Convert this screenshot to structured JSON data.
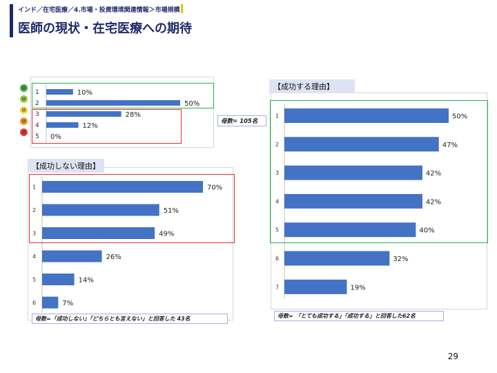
{
  "header": {
    "breadcrumb": "インド／在宅医療／4.市場・投資環境関連情報＞市場規模",
    "title": "医師の現状・在宅医療への期待"
  },
  "sentiment_chart": {
    "note": "母数= 105名",
    "faces": [
      {
        "icon": "very-happy-face-icon",
        "color": "#3fae49"
      },
      {
        "icon": "happy-face-icon",
        "color": "#9ccc3c"
      },
      {
        "icon": "neutral-face-icon",
        "color": "#f5d33a"
      },
      {
        "icon": "unhappy-face-icon",
        "color": "#f39a2b"
      },
      {
        "icon": "angry-face-icon",
        "color": "#e53935"
      }
    ],
    "chart_data": {
      "type": "bar",
      "categories": [
        "1",
        "2",
        "3",
        "4",
        "5"
      ],
      "values": [
        10,
        50,
        28,
        12,
        0
      ],
      "labels": [
        "10%",
        "50%",
        "28%",
        "12%",
        "0%"
      ],
      "xlim": [
        0,
        60
      ]
    }
  },
  "fail_chart": {
    "tag": "【成功しない理由】",
    "note": "母数=「成功しない」「どちらとも言えない」と回答した 43名",
    "chart_data": {
      "type": "bar",
      "categories": [
        "1",
        "2",
        "3",
        "4",
        "5",
        "6"
      ],
      "values": [
        70,
        51,
        49,
        26,
        14,
        7
      ],
      "labels": [
        "70%",
        "51%",
        "49%",
        "26%",
        "14%",
        "7%"
      ],
      "xlim": [
        0,
        100
      ]
    }
  },
  "success_chart": {
    "tag": "【成功する理由】",
    "note": "母数= 「とても成功する」「成功する」と回答した62名",
    "chart_data": {
      "type": "bar",
      "categories": [
        "1",
        "2",
        "3",
        "4",
        "5",
        "6",
        "7"
      ],
      "values": [
        50,
        47,
        42,
        42,
        40,
        32,
        19
      ],
      "labels": [
        "50%",
        "47%",
        "42%",
        "42%",
        "40%",
        "32%",
        "19%"
      ],
      "xlim": [
        0,
        60
      ]
    }
  },
  "footer": {
    "page": "29"
  }
}
